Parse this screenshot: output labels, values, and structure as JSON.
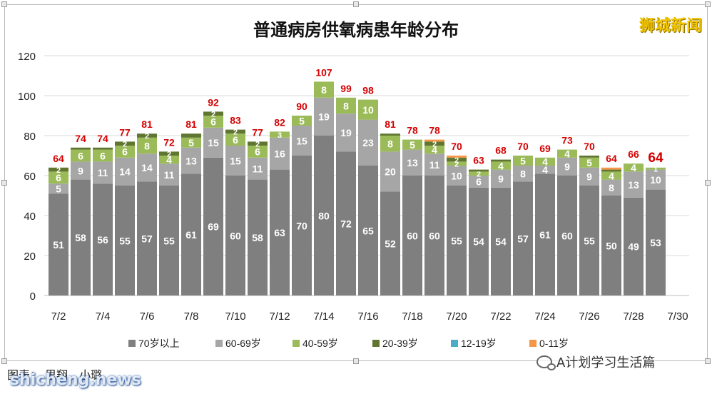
{
  "title": "普通病房供氧病患年龄分布",
  "brand": "狮城新闻",
  "footer_left": "图表： 思翔、小璐",
  "watermark": "shicheng.news",
  "wechat_label": "A计划学习生活篇",
  "icons": {
    "wechat": "wechat-icon"
  },
  "chart_data": {
    "type": "bar",
    "stacked": true,
    "title": "普通病房供氧病患年龄分布",
    "ylim": [
      0,
      120
    ],
    "yticks": [
      0,
      20,
      40,
      60,
      80,
      100,
      120
    ],
    "grid": true,
    "legend_position": "bottom",
    "categories": [
      "7/2",
      "7/3",
      "7/4",
      "7/5",
      "7/6",
      "7/7",
      "7/8",
      "7/9",
      "7/10",
      "7/11",
      "7/12",
      "7/13",
      "7/14",
      "7/15",
      "7/16",
      "7/17",
      "7/18",
      "7/19",
      "7/20",
      "7/21",
      "7/22",
      "7/23",
      "7/24",
      "7/25",
      "7/26",
      "7/27",
      "7/28",
      "7/29"
    ],
    "xticks": [
      "7/2",
      "7/4",
      "7/6",
      "7/8",
      "7/10",
      "7/12",
      "7/14",
      "7/16",
      "7/18",
      "7/20",
      "7/22",
      "7/24",
      "7/26",
      "7/28",
      "7/30"
    ],
    "totals": [
      64,
      74,
      74,
      77,
      81,
      72,
      81,
      92,
      83,
      77,
      82,
      90,
      107,
      99,
      98,
      81,
      78,
      78,
      70,
      63,
      68,
      70,
      69,
      73,
      70,
      64,
      66,
      64
    ],
    "series": [
      {
        "name": "70岁以上",
        "color": "#7f7f7f",
        "labelColor": "#ffffff",
        "values": [
          51,
          58,
          56,
          55,
          57,
          55,
          61,
          69,
          60,
          58,
          63,
          70,
          80,
          72,
          65,
          52,
          60,
          60,
          55,
          54,
          54,
          57,
          61,
          60,
          55,
          50,
          49,
          53
        ],
        "labels": [
          "51",
          "58",
          "56",
          "55",
          "57",
          "55",
          "61",
          "69",
          "60",
          "58",
          "63",
          "70",
          "80",
          "72",
          "65",
          "52",
          "60",
          "60",
          "55",
          "54",
          "54",
          "57",
          "61",
          "60",
          "55",
          "50",
          "49",
          "53"
        ]
      },
      {
        "name": "60-69岁",
        "color": "#a6a6a6",
        "labelColor": "#ffffff",
        "values": [
          5,
          9,
          11,
          14,
          14,
          11,
          13,
          15,
          15,
          11,
          16,
          15,
          19,
          19,
          23,
          20,
          13,
          11,
          10,
          6,
          9,
          8,
          4,
          9,
          9,
          8,
          13,
          10
        ],
        "labels": [
          "5",
          "9",
          "11",
          "14",
          "14",
          "11",
          "13",
          "15",
          "15",
          "11",
          "16",
          "15",
          "19",
          "19",
          "23",
          "20",
          "13",
          "11",
          "10",
          "6",
          "9",
          "8",
          "4",
          "9",
          "9",
          "8",
          "13",
          "10"
        ]
      },
      {
        "name": "40-59岁",
        "color": "#9bbb59",
        "labelColor": "#ffffff",
        "values": [
          6,
          6,
          6,
          6,
          8,
          4,
          5,
          6,
          6,
          6,
          3,
          5,
          8,
          8,
          10,
          8,
          5,
          4,
          2,
          2,
          4,
          5,
          4,
          4,
          5,
          4,
          4,
          1
        ],
        "labels": [
          "6",
          "6",
          "6",
          "6",
          "8",
          "4",
          "5",
          "6",
          "6",
          "6",
          "3",
          "5",
          "8",
          "8",
          "10",
          "8",
          "5",
          "4",
          "2",
          "2",
          "4",
          "5",
          "4",
          "4",
          "5",
          "4",
          "4",
          "1"
        ]
      },
      {
        "name": "20-39岁",
        "color": "#5f7530",
        "labelColor": "#ffffff",
        "values": [
          2,
          1,
          1,
          2,
          2,
          2,
          2,
          2,
          2,
          2,
          0,
          0,
          0,
          0,
          0,
          1,
          0,
          2,
          2,
          1,
          1,
          0,
          0,
          0,
          1,
          1,
          0,
          0
        ],
        "labels": [
          "2",
          "",
          "",
          "2",
          "2",
          "2",
          "",
          "2",
          "2",
          "2",
          "",
          "",
          "",
          "",
          "",
          "",
          "",
          "2",
          "2",
          "",
          "",
          "",
          "",
          "",
          "",
          "",
          "",
          ""
        ]
      },
      {
        "name": "12-19岁",
        "color": "#4bacc6",
        "labelColor": "#ffffff",
        "values": [
          0,
          0,
          0,
          0,
          0,
          0,
          0,
          0,
          0,
          0,
          0,
          0,
          0,
          0,
          0,
          0,
          0,
          0,
          0,
          0,
          0,
          0,
          0,
          0,
          0,
          0,
          0,
          0
        ],
        "labels": []
      },
      {
        "name": "0-11岁",
        "color": "#f79646",
        "labelColor": "#ffffff",
        "values": [
          0,
          0,
          0,
          0,
          0,
          0,
          0,
          0,
          0,
          0,
          0,
          0,
          0,
          0,
          0,
          0,
          0,
          1,
          1,
          0,
          0,
          0,
          0,
          0,
          0,
          1,
          0,
          0
        ],
        "labels": []
      }
    ]
  }
}
